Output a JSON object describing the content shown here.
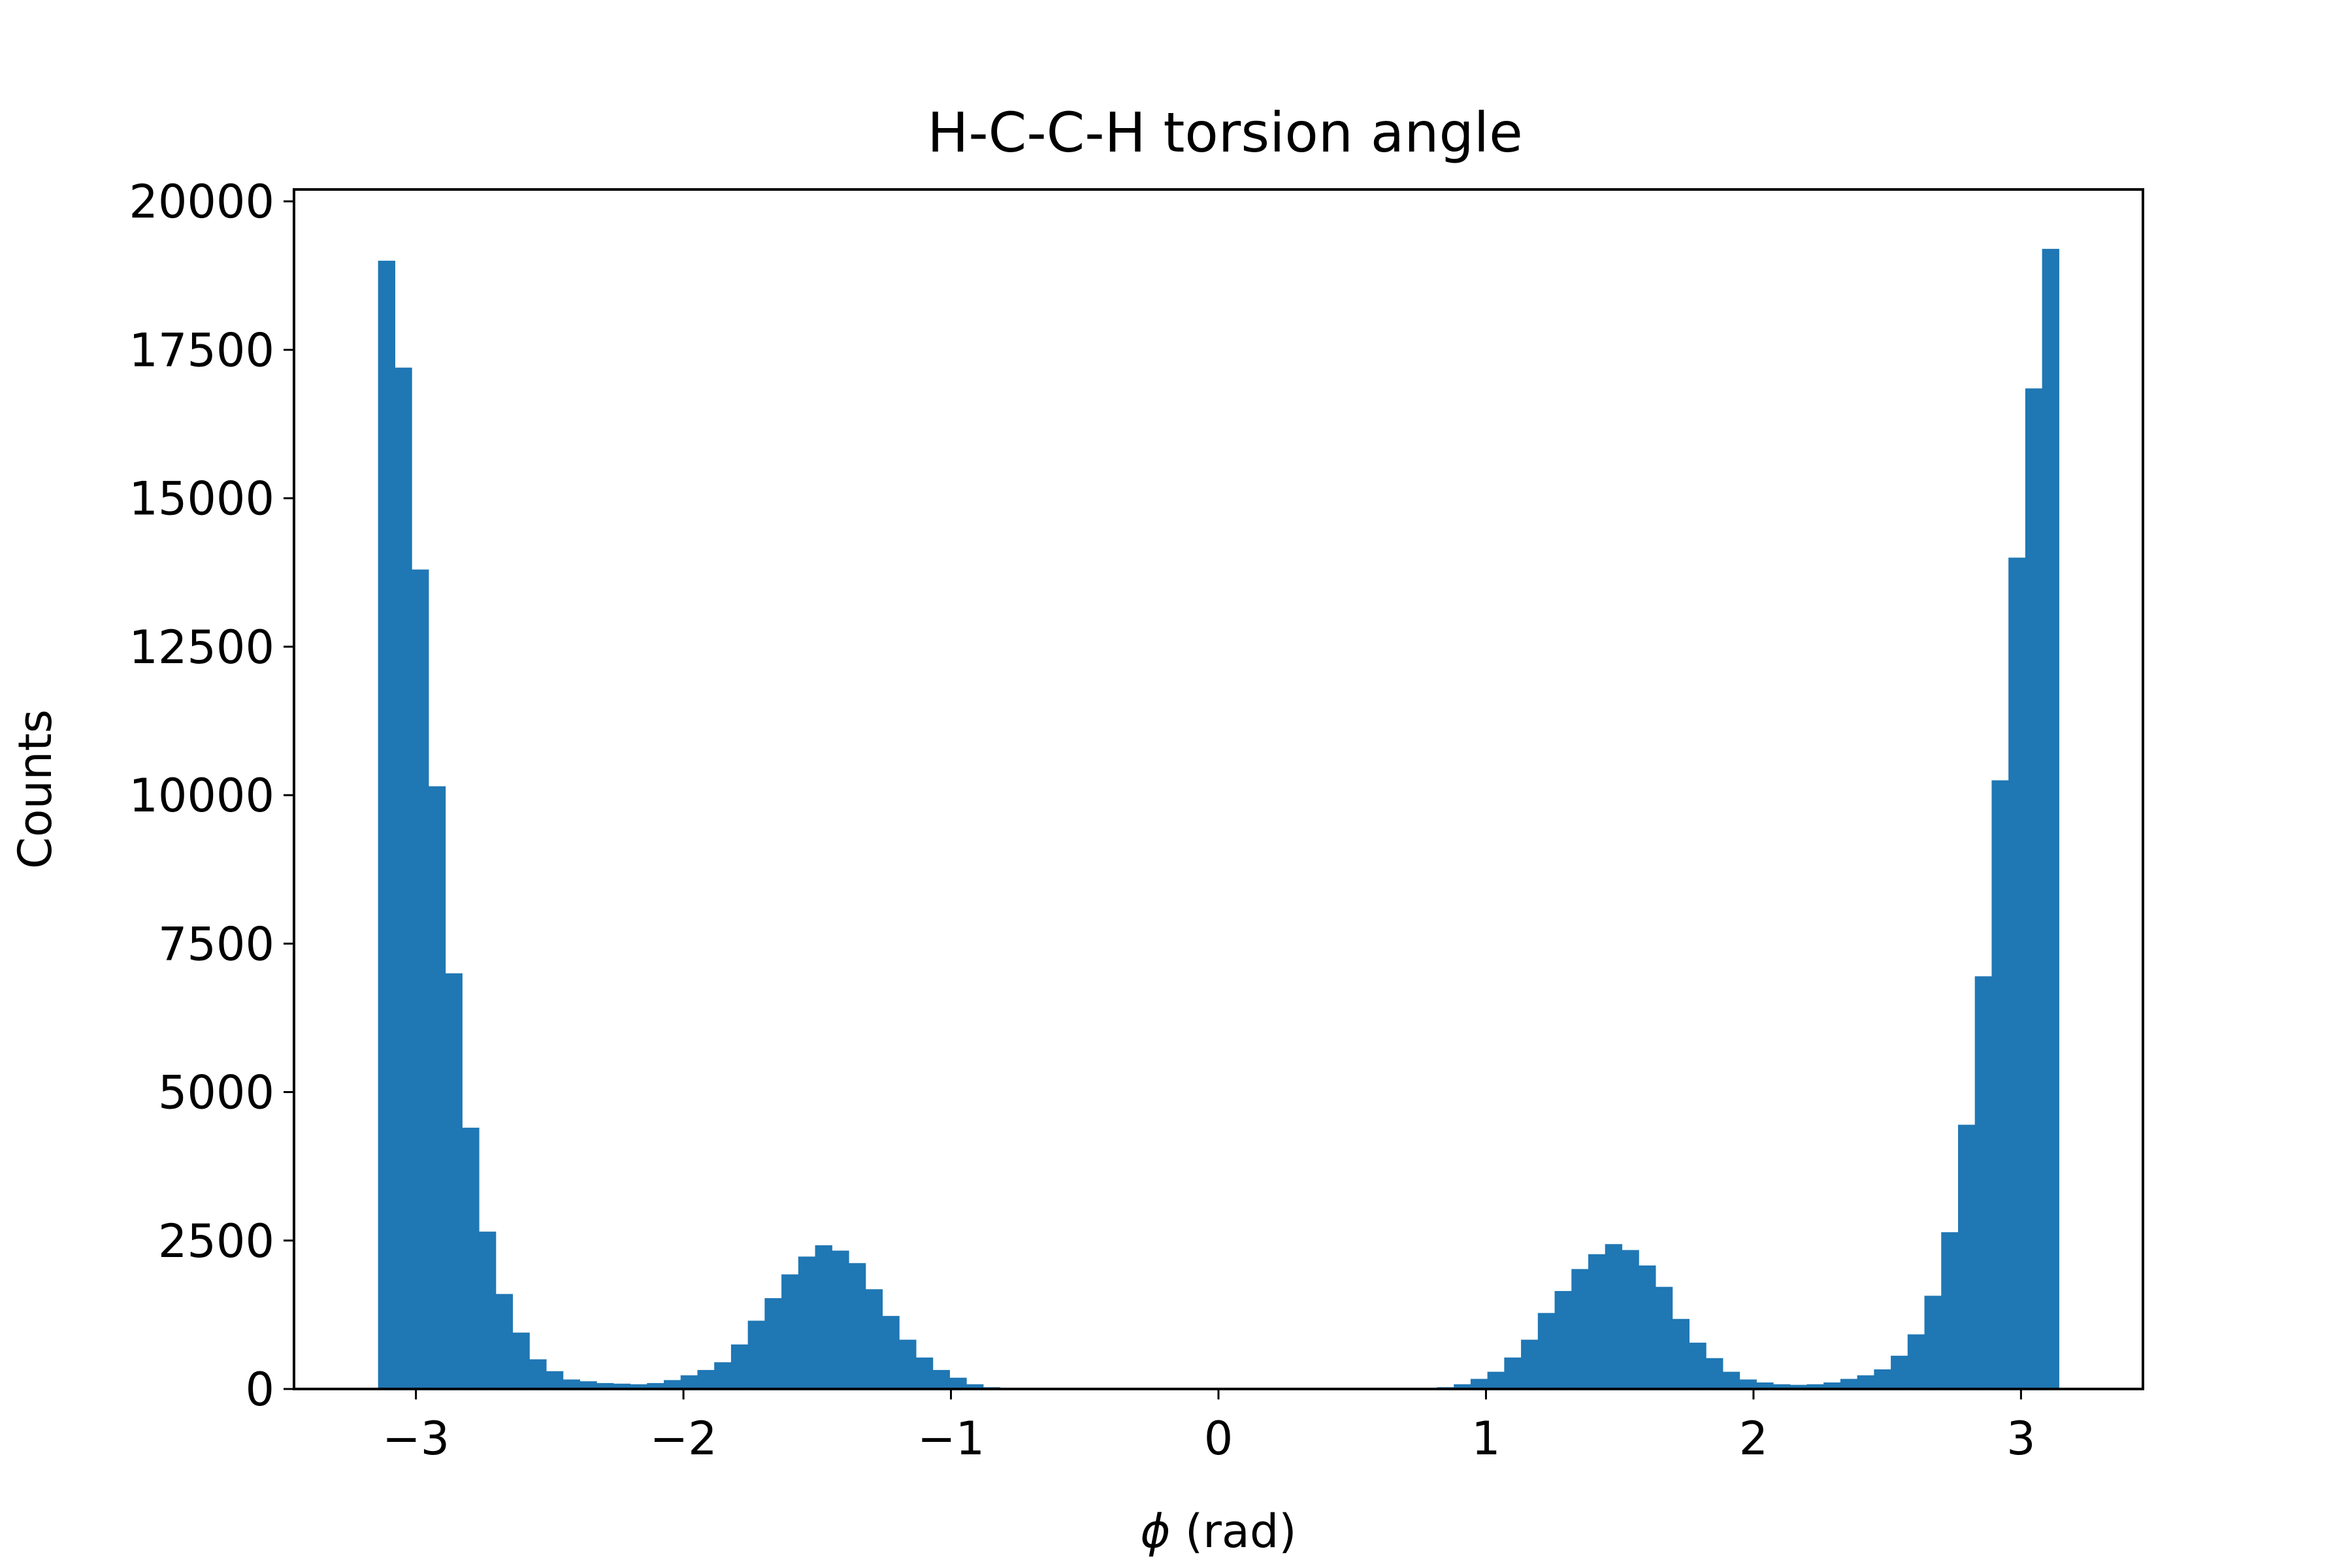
{
  "chart_data": {
    "type": "bar",
    "title": "H-C-C-H torsion angle",
    "xlabel_symbol": "ϕ",
    "xlabel_unit": " (rad)",
    "ylabel": "Counts",
    "xlim": [
      -3.4558,
      3.4558
    ],
    "ylim": [
      0,
      20200
    ],
    "xticks": [
      -3,
      -2,
      -1,
      0,
      1,
      2,
      3
    ],
    "xtick_labels": [
      "−3",
      "−2",
      "−1",
      "0",
      "1",
      "2",
      "3"
    ],
    "yticks": [
      0,
      2500,
      5000,
      7500,
      10000,
      12500,
      15000,
      17500,
      20000
    ],
    "ytick_labels": [
      "0",
      "2500",
      "5000",
      "7500",
      "10000",
      "12500",
      "15000",
      "17500",
      "20000"
    ],
    "bin_range": [
      -3.1416,
      3.1416
    ],
    "bar_color": "#1f77b4",
    "values": [
      19000,
      17200,
      13800,
      10150,
      7000,
      4400,
      2650,
      1600,
      950,
      500,
      300,
      160,
      130,
      100,
      90,
      80,
      100,
      150,
      230,
      320,
      450,
      750,
      1150,
      1530,
      1930,
      2230,
      2420,
      2330,
      2120,
      1680,
      1230,
      830,
      530,
      320,
      190,
      80,
      30,
      0,
      0,
      0,
      0,
      0,
      0,
      0,
      0,
      0,
      0,
      0,
      0,
      0,
      0,
      0,
      0,
      0,
      0,
      0,
      0,
      0,
      0,
      0,
      0,
      0,
      0,
      30,
      80,
      170,
      290,
      530,
      830,
      1280,
      1650,
      2020,
      2270,
      2440,
      2340,
      2080,
      1720,
      1180,
      780,
      520,
      290,
      160,
      110,
      80,
      70,
      80,
      110,
      170,
      230,
      330,
      560,
      920,
      1570,
      2640,
      4450,
      6950,
      10250,
      14000,
      16850,
      19200
    ]
  }
}
